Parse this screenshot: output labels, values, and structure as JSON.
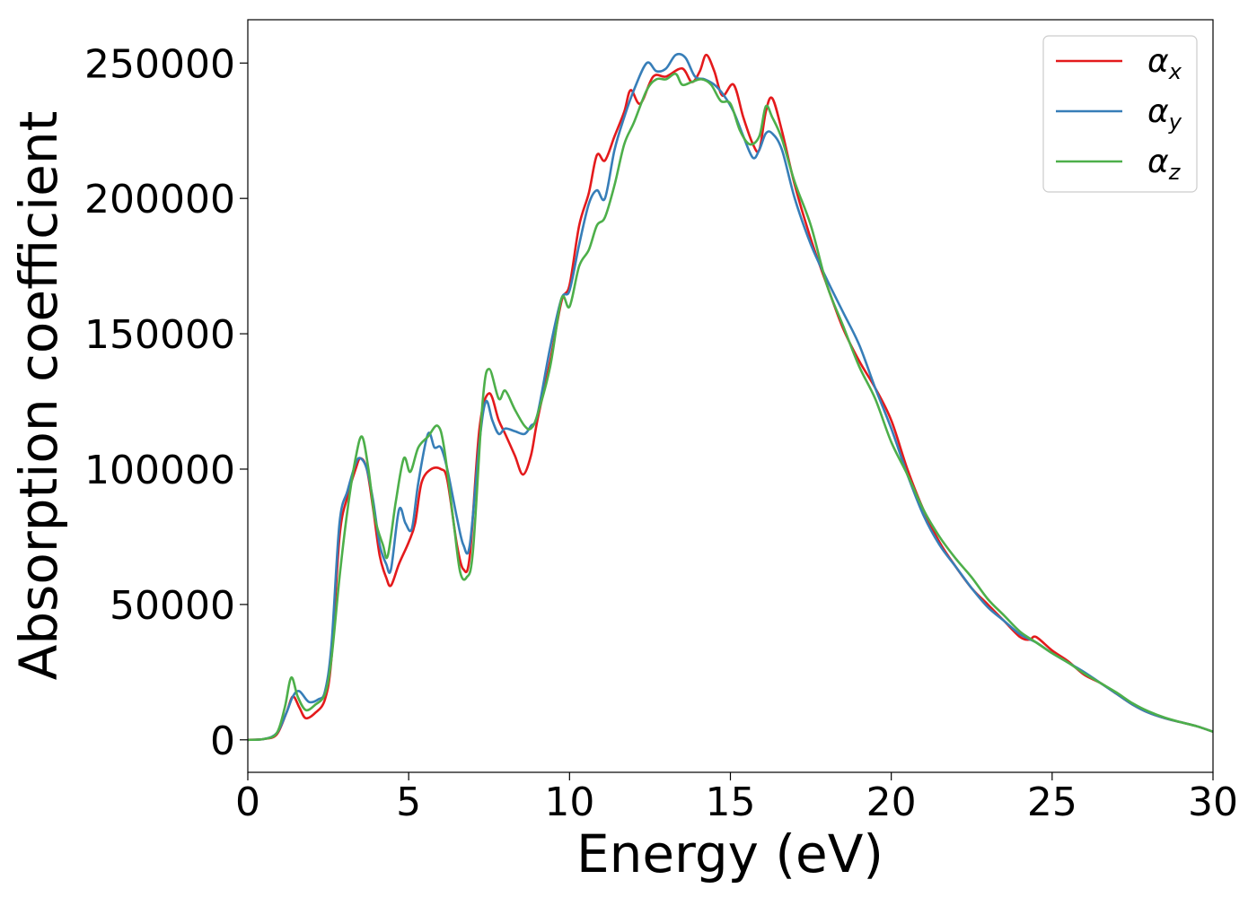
{
  "chart_data": {
    "type": "line",
    "title": "",
    "xlabel": "Energy (eV)",
    "ylabel": "Absorption coefficient",
    "xlim": [
      0,
      30
    ],
    "ylim": [
      -12000,
      266000
    ],
    "xticks": [
      0,
      5,
      10,
      15,
      20,
      25,
      30
    ],
    "yticks": [
      0,
      50000,
      100000,
      150000,
      200000,
      250000
    ],
    "xtick_labels": [
      "0",
      "5",
      "10",
      "15",
      "20",
      "25",
      "30"
    ],
    "ytick_labels": [
      "0",
      "50000",
      "100000",
      "150000",
      "200000",
      "250000"
    ],
    "grid": false,
    "legend_position": "top-right",
    "series": [
      {
        "name": "α_x",
        "symbol": "α",
        "sub": "x",
        "color": "#e41a1c",
        "points": [
          [
            0,
            0
          ],
          [
            0.5,
            300
          ],
          [
            0.9,
            2000
          ],
          [
            1.2,
            10000
          ],
          [
            1.4,
            16000
          ],
          [
            1.6,
            12000
          ],
          [
            1.8,
            8000
          ],
          [
            2.1,
            10000
          ],
          [
            2.4,
            15000
          ],
          [
            2.6,
            30000
          ],
          [
            2.85,
            75000
          ],
          [
            3.1,
            90000
          ],
          [
            3.35,
            100000
          ],
          [
            3.5,
            104000
          ],
          [
            3.7,
            100000
          ],
          [
            3.9,
            85000
          ],
          [
            4.1,
            68000
          ],
          [
            4.3,
            60000
          ],
          [
            4.45,
            57000
          ],
          [
            4.7,
            65000
          ],
          [
            5.0,
            73000
          ],
          [
            5.2,
            80000
          ],
          [
            5.4,
            95000
          ],
          [
            5.7,
            100000
          ],
          [
            6.0,
            100000
          ],
          [
            6.2,
            96000
          ],
          [
            6.5,
            72000
          ],
          [
            6.7,
            63000
          ],
          [
            6.9,
            68000
          ],
          [
            7.2,
            115000
          ],
          [
            7.5,
            128000
          ],
          [
            7.8,
            118000
          ],
          [
            8.0,
            113000
          ],
          [
            8.3,
            105000
          ],
          [
            8.55,
            98000
          ],
          [
            8.8,
            105000
          ],
          [
            9.0,
            118000
          ],
          [
            9.4,
            140000
          ],
          [
            9.75,
            162000
          ],
          [
            10.0,
            168000
          ],
          [
            10.3,
            190000
          ],
          [
            10.6,
            202000
          ],
          [
            10.85,
            216000
          ],
          [
            11.1,
            214000
          ],
          [
            11.4,
            223000
          ],
          [
            11.7,
            232000
          ],
          [
            11.9,
            240000
          ],
          [
            12.2,
            235000
          ],
          [
            12.6,
            245000
          ],
          [
            13.0,
            245000
          ],
          [
            13.5,
            248000
          ],
          [
            13.8,
            243000
          ],
          [
            14.05,
            247000
          ],
          [
            14.25,
            253000
          ],
          [
            14.5,
            247000
          ],
          [
            14.75,
            238000
          ],
          [
            15.1,
            242000
          ],
          [
            15.4,
            230000
          ],
          [
            15.7,
            220000
          ],
          [
            15.9,
            218000
          ],
          [
            16.1,
            232000
          ],
          [
            16.3,
            237000
          ],
          [
            16.6,
            225000
          ],
          [
            17.0,
            205000
          ],
          [
            17.5,
            185000
          ],
          [
            18.0,
            168000
          ],
          [
            18.5,
            152000
          ],
          [
            19.0,
            140000
          ],
          [
            19.5,
            130000
          ],
          [
            20.0,
            118000
          ],
          [
            20.5,
            100000
          ],
          [
            21.0,
            85000
          ],
          [
            21.5,
            73000
          ],
          [
            22.0,
            64000
          ],
          [
            22.5,
            56000
          ],
          [
            23.0,
            50000
          ],
          [
            23.5,
            44000
          ],
          [
            24.0,
            38000
          ],
          [
            24.3,
            37000
          ],
          [
            24.5,
            38000
          ],
          [
            25.0,
            33000
          ],
          [
            25.5,
            29000
          ],
          [
            26.0,
            24000
          ],
          [
            26.5,
            21000
          ],
          [
            27.0,
            17000
          ],
          [
            27.5,
            13000
          ],
          [
            28.0,
            10000
          ],
          [
            28.5,
            8000
          ],
          [
            29.0,
            6500
          ],
          [
            29.5,
            5000
          ],
          [
            30.0,
            3000
          ]
        ]
      },
      {
        "name": "α_y",
        "symbol": "α",
        "sub": "y",
        "color": "#377eb8",
        "points": [
          [
            0,
            0
          ],
          [
            0.5,
            300
          ],
          [
            0.9,
            2500
          ],
          [
            1.2,
            10000
          ],
          [
            1.4,
            16000
          ],
          [
            1.6,
            18000
          ],
          [
            1.9,
            14000
          ],
          [
            2.2,
            15000
          ],
          [
            2.4,
            18000
          ],
          [
            2.6,
            35000
          ],
          [
            2.85,
            80000
          ],
          [
            3.1,
            92000
          ],
          [
            3.35,
            102000
          ],
          [
            3.5,
            104000
          ],
          [
            3.7,
            100000
          ],
          [
            3.9,
            88000
          ],
          [
            4.1,
            72000
          ],
          [
            4.3,
            65000
          ],
          [
            4.45,
            63000
          ],
          [
            4.7,
            85000
          ],
          [
            4.9,
            80000
          ],
          [
            5.1,
            78000
          ],
          [
            5.3,
            95000
          ],
          [
            5.6,
            113000
          ],
          [
            5.8,
            108000
          ],
          [
            6.0,
            108000
          ],
          [
            6.2,
            100000
          ],
          [
            6.5,
            82000
          ],
          [
            6.7,
            72000
          ],
          [
            6.9,
            72000
          ],
          [
            7.2,
            110000
          ],
          [
            7.4,
            125000
          ],
          [
            7.6,
            118000
          ],
          [
            7.8,
            113000
          ],
          [
            8.0,
            115000
          ],
          [
            8.3,
            114000
          ],
          [
            8.6,
            113000
          ],
          [
            8.8,
            116000
          ],
          [
            9.0,
            120000
          ],
          [
            9.4,
            145000
          ],
          [
            9.75,
            163000
          ],
          [
            10.0,
            166000
          ],
          [
            10.3,
            183000
          ],
          [
            10.6,
            198000
          ],
          [
            10.85,
            203000
          ],
          [
            11.1,
            200000
          ],
          [
            11.4,
            218000
          ],
          [
            11.7,
            230000
          ],
          [
            12.0,
            240000
          ],
          [
            12.4,
            250000
          ],
          [
            12.7,
            247000
          ],
          [
            13.0,
            248000
          ],
          [
            13.3,
            253000
          ],
          [
            13.6,
            252000
          ],
          [
            13.9,
            245000
          ],
          [
            14.2,
            244000
          ],
          [
            14.5,
            242000
          ],
          [
            14.8,
            238000
          ],
          [
            15.1,
            232000
          ],
          [
            15.4,
            223000
          ],
          [
            15.7,
            215000
          ],
          [
            15.9,
            218000
          ],
          [
            16.1,
            224000
          ],
          [
            16.3,
            224000
          ],
          [
            16.6,
            218000
          ],
          [
            17.0,
            200000
          ],
          [
            17.5,
            183000
          ],
          [
            18.0,
            170000
          ],
          [
            18.5,
            158000
          ],
          [
            19.0,
            146000
          ],
          [
            19.5,
            130000
          ],
          [
            20.0,
            115000
          ],
          [
            20.5,
            98000
          ],
          [
            21.0,
            83000
          ],
          [
            21.5,
            72000
          ],
          [
            22.0,
            64000
          ],
          [
            22.5,
            56000
          ],
          [
            23.0,
            49000
          ],
          [
            23.5,
            44000
          ],
          [
            24.0,
            39000
          ],
          [
            24.5,
            36000
          ],
          [
            25.0,
            32000
          ],
          [
            25.5,
            28500
          ],
          [
            26.0,
            25000
          ],
          [
            26.5,
            21000
          ],
          [
            27.0,
            17000
          ],
          [
            27.5,
            13000
          ],
          [
            28.0,
            10000
          ],
          [
            28.5,
            8000
          ],
          [
            29.0,
            6500
          ],
          [
            29.5,
            5000
          ],
          [
            30.0,
            3000
          ]
        ]
      },
      {
        "name": "α_z",
        "symbol": "α",
        "sub": "z",
        "color": "#4daf4a",
        "points": [
          [
            0,
            0
          ],
          [
            0.5,
            300
          ],
          [
            0.9,
            2500
          ],
          [
            1.15,
            12000
          ],
          [
            1.35,
            23000
          ],
          [
            1.55,
            16000
          ],
          [
            1.8,
            11000
          ],
          [
            2.1,
            13000
          ],
          [
            2.4,
            17000
          ],
          [
            2.6,
            30000
          ],
          [
            2.85,
            60000
          ],
          [
            3.1,
            85000
          ],
          [
            3.35,
            104000
          ],
          [
            3.55,
            112000
          ],
          [
            3.75,
            100000
          ],
          [
            3.95,
            82000
          ],
          [
            4.2,
            72000
          ],
          [
            4.35,
            68000
          ],
          [
            4.6,
            88000
          ],
          [
            4.85,
            104000
          ],
          [
            5.05,
            99000
          ],
          [
            5.3,
            108000
          ],
          [
            5.6,
            112000
          ],
          [
            5.9,
            116000
          ],
          [
            6.1,
            108000
          ],
          [
            6.4,
            80000
          ],
          [
            6.6,
            62000
          ],
          [
            6.8,
            60000
          ],
          [
            7.0,
            70000
          ],
          [
            7.3,
            125000
          ],
          [
            7.5,
            137000
          ],
          [
            7.8,
            126000
          ],
          [
            8.0,
            129000
          ],
          [
            8.3,
            122000
          ],
          [
            8.6,
            116000
          ],
          [
            8.8,
            115000
          ],
          [
            9.0,
            120000
          ],
          [
            9.4,
            138000
          ],
          [
            9.75,
            163000
          ],
          [
            10.0,
            160000
          ],
          [
            10.3,
            175000
          ],
          [
            10.6,
            181000
          ],
          [
            10.85,
            190000
          ],
          [
            11.1,
            193000
          ],
          [
            11.4,
            205000
          ],
          [
            11.7,
            220000
          ],
          [
            12.0,
            228000
          ],
          [
            12.4,
            240000
          ],
          [
            12.7,
            244000
          ],
          [
            13.0,
            244000
          ],
          [
            13.3,
            246000
          ],
          [
            13.5,
            242000
          ],
          [
            13.8,
            243000
          ],
          [
            14.1,
            244000
          ],
          [
            14.4,
            242000
          ],
          [
            14.7,
            236000
          ],
          [
            15.0,
            235000
          ],
          [
            15.3,
            225000
          ],
          [
            15.6,
            220000
          ],
          [
            15.9,
            223000
          ],
          [
            16.1,
            234000
          ],
          [
            16.3,
            230000
          ],
          [
            16.6,
            222000
          ],
          [
            17.0,
            206000
          ],
          [
            17.5,
            190000
          ],
          [
            18.0,
            168000
          ],
          [
            18.5,
            153000
          ],
          [
            19.0,
            138000
          ],
          [
            19.5,
            126000
          ],
          [
            20.0,
            110000
          ],
          [
            20.5,
            98000
          ],
          [
            21.0,
            85000
          ],
          [
            21.5,
            75000
          ],
          [
            22.0,
            67000
          ],
          [
            22.5,
            60000
          ],
          [
            23.0,
            52000
          ],
          [
            23.5,
            46000
          ],
          [
            24.0,
            40000
          ],
          [
            24.5,
            36000
          ],
          [
            25.0,
            32000
          ],
          [
            25.5,
            28500
          ],
          [
            26.0,
            24500
          ],
          [
            26.5,
            21000
          ],
          [
            27.0,
            17500
          ],
          [
            27.5,
            13500
          ],
          [
            28.0,
            10500
          ],
          [
            28.5,
            8200
          ],
          [
            29.0,
            6500
          ],
          [
            29.5,
            5000
          ],
          [
            30.0,
            3000
          ]
        ]
      }
    ]
  }
}
